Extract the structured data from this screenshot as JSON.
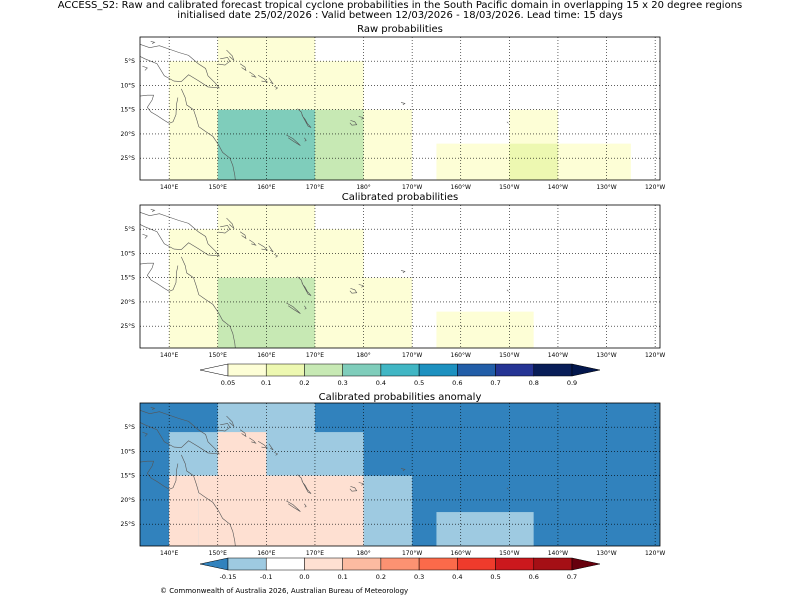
{
  "header": {
    "title_line1": "ACCESS_S2: Raw and calibrated forecast tropical cyclone probabilities in the South Pacific domain in overlapping 15 x 20 degree regions",
    "title_line2": "initialised date 25/02/2026 :  Valid between 12/03/2026 - 18/03/2026. Lead time: 15 days"
  },
  "footer": {
    "copyright": "© Commonwealth of Australia 2026, Australian Bureau of Meteorology"
  },
  "chart_data": [
    {
      "type": "heatmap",
      "title": "Raw probabilities",
      "x_unit": "longitude",
      "y_unit": "latitude",
      "xlim": [
        134,
        241
      ],
      "ylim": [
        -29.5,
        0
      ],
      "x_ticks": [
        140,
        150,
        160,
        170,
        180,
        190,
        200,
        210,
        220,
        230,
        240
      ],
      "x_tick_labels": [
        "140°E",
        "150°E",
        "160°E",
        "170°E",
        "180°",
        "170°W",
        "160°W",
        "150°W",
        "140°W",
        "130°W",
        "120°W"
      ],
      "y_ticks": [
        -5,
        -10,
        -15,
        -20,
        -25
      ],
      "y_tick_labels": [
        "5°S",
        "10°S",
        "15°S",
        "20°S",
        "25°S"
      ],
      "grid": true,
      "cells": [
        {
          "lon": [
            150,
            170
          ],
          "lat": [
            -30,
            0
          ],
          "prob": 0.07
        },
        {
          "lon": [
            140,
            160
          ],
          "lat": [
            -30,
            -5
          ],
          "prob": 0.07
        },
        {
          "lon": [
            160,
            180
          ],
          "lat": [
            -30,
            -5
          ],
          "prob": 0.07
        },
        {
          "lon": [
            150,
            170
          ],
          "lat": [
            -30,
            -5
          ],
          "prob": 0.07
        },
        {
          "lon": [
            170,
            190
          ],
          "lat": [
            -30,
            -15
          ],
          "prob": 0.07
        },
        {
          "lon": [
            160,
            180
          ],
          "lat": [
            -30,
            -15
          ],
          "prob": 0.07
        },
        {
          "lon": [
            210,
            220
          ],
          "lat": [
            -22,
            -15
          ],
          "prob": 0.06
        },
        {
          "lon": [
            195,
            235
          ],
          "lat": [
            -30,
            -22
          ],
          "prob": 0.05
        },
        {
          "lon": [
            210,
            220
          ],
          "lat": [
            -30,
            -22
          ],
          "prob": 0.1
        },
        {
          "lon": [
            150,
            180
          ],
          "lat": [
            -30,
            -15
          ],
          "prob": 0.21
        },
        {
          "lon": [
            150,
            170
          ],
          "lat": [
            -30,
            -15
          ],
          "prob": 0.33
        }
      ]
    },
    {
      "type": "heatmap",
      "title": "Calibrated probabilities",
      "x_unit": "longitude",
      "y_unit": "latitude",
      "xlim": [
        134,
        241
      ],
      "ylim": [
        -29.5,
        0
      ],
      "x_ticks": [
        140,
        150,
        160,
        170,
        180,
        190,
        200,
        210,
        220,
        230,
        240
      ],
      "x_tick_labels": [
        "140°E",
        "150°E",
        "160°E",
        "170°E",
        "180°",
        "170°W",
        "160°W",
        "150°W",
        "140°W",
        "130°W",
        "120°W"
      ],
      "y_ticks": [
        -5,
        -10,
        -15,
        -20,
        -25
      ],
      "y_tick_labels": [
        "5°S",
        "10°S",
        "15°S",
        "20°S",
        "25°S"
      ],
      "grid": true,
      "cells": [
        {
          "lon": [
            150,
            170
          ],
          "lat": [
            -30,
            0
          ],
          "prob": 0.07
        },
        {
          "lon": [
            140,
            160
          ],
          "lat": [
            -30,
            -5
          ],
          "prob": 0.07
        },
        {
          "lon": [
            160,
            180
          ],
          "lat": [
            -30,
            -5
          ],
          "prob": 0.07
        },
        {
          "lon": [
            150,
            170
          ],
          "lat": [
            -30,
            -5
          ],
          "prob": 0.07
        },
        {
          "lon": [
            170,
            190
          ],
          "lat": [
            -30,
            -15
          ],
          "prob": 0.07
        },
        {
          "lon": [
            160,
            180
          ],
          "lat": [
            -30,
            -15
          ],
          "prob": 0.07
        },
        {
          "lon": [
            195,
            215
          ],
          "lat": [
            -30,
            -22
          ],
          "prob": 0.06
        },
        {
          "lon": [
            150,
            170
          ],
          "lat": [
            -30,
            -15
          ],
          "prob": 0.21
        }
      ],
      "colorbar": {
        "ticks": [
          0.05,
          0.1,
          0.2,
          0.3,
          0.4,
          0.5,
          0.6,
          0.7,
          0.8,
          0.9
        ],
        "tick_labels": [
          "0.05",
          "0.1",
          "0.2",
          "0.3",
          "0.4",
          "0.5",
          "0.6",
          "0.7",
          "0.8",
          "0.9"
        ],
        "colors": [
          "#ffffff",
          "#fdfed6",
          "#edf8b1",
          "#c7e9b4",
          "#7fcdbb",
          "#41b6c4",
          "#1d91c0",
          "#225ea8",
          "#253494",
          "#081d58",
          "#03174d"
        ]
      }
    },
    {
      "type": "heatmap",
      "title": "Calibrated probabilities anomaly",
      "x_unit": "longitude",
      "y_unit": "latitude",
      "xlim": [
        134,
        241
      ],
      "ylim": [
        -29.5,
        0
      ],
      "x_ticks": [
        140,
        150,
        160,
        170,
        180,
        190,
        200,
        210,
        220,
        230,
        240
      ],
      "x_tick_labels": [
        "140°E",
        "150°E",
        "160°E",
        "170°E",
        "180°",
        "170°W",
        "160°W",
        "150°W",
        "140°W",
        "130°W",
        "120°W"
      ],
      "y_ticks": [
        -5,
        -10,
        -15,
        -20,
        -25
      ],
      "y_tick_labels": [
        "5°S",
        "10°S",
        "15°S",
        "20°S",
        "25°S"
      ],
      "grid": true,
      "background_anomaly": -0.2,
      "cells": [
        {
          "lon": [
            150,
            170
          ],
          "lat": [
            -30,
            0
          ],
          "anom": -0.12
        },
        {
          "lon": [
            140,
            160
          ],
          "lat": [
            -30,
            -6
          ],
          "anom": -0.12
        },
        {
          "lon": [
            160,
            180
          ],
          "lat": [
            -30,
            -6
          ],
          "anom": -0.12
        },
        {
          "lon": [
            180,
            190
          ],
          "lat": [
            -30,
            -15
          ],
          "anom": -0.12
        },
        {
          "lon": [
            195,
            215
          ],
          "lat": [
            -30,
            -22.5
          ],
          "anom": -0.12
        },
        {
          "lon": [
            146,
            180
          ],
          "lat": [
            -30,
            -15
          ],
          "anom": 0.0
        },
        {
          "lon": [
            150,
            160
          ],
          "lat": [
            -15,
            -6
          ],
          "anom": 0.0
        },
        {
          "lon": [
            140,
            146
          ],
          "lat": [
            -30,
            -15
          ],
          "anom": 0.0
        },
        {
          "lon": [
            150,
            170
          ],
          "lat": [
            -30,
            -15
          ],
          "anom": 0.05
        }
      ],
      "colorbar": {
        "ticks": [
          -0.15,
          -0.1,
          0.0,
          0.1,
          0.2,
          0.3,
          0.4,
          0.5,
          0.6,
          0.7
        ],
        "tick_labels": [
          "-0.15",
          "-0.1",
          "0.0",
          "0.1",
          "0.2",
          "0.3",
          "0.4",
          "0.5",
          "0.6",
          "0.7"
        ],
        "colors": [
          "#3182bd",
          "#9ecae1",
          "#ffffff",
          "#fee0d2",
          "#fcbba1",
          "#fc9272",
          "#fb6a4a",
          "#ef3b2c",
          "#cb181d",
          "#a50f15",
          "#67000d"
        ]
      }
    }
  ]
}
